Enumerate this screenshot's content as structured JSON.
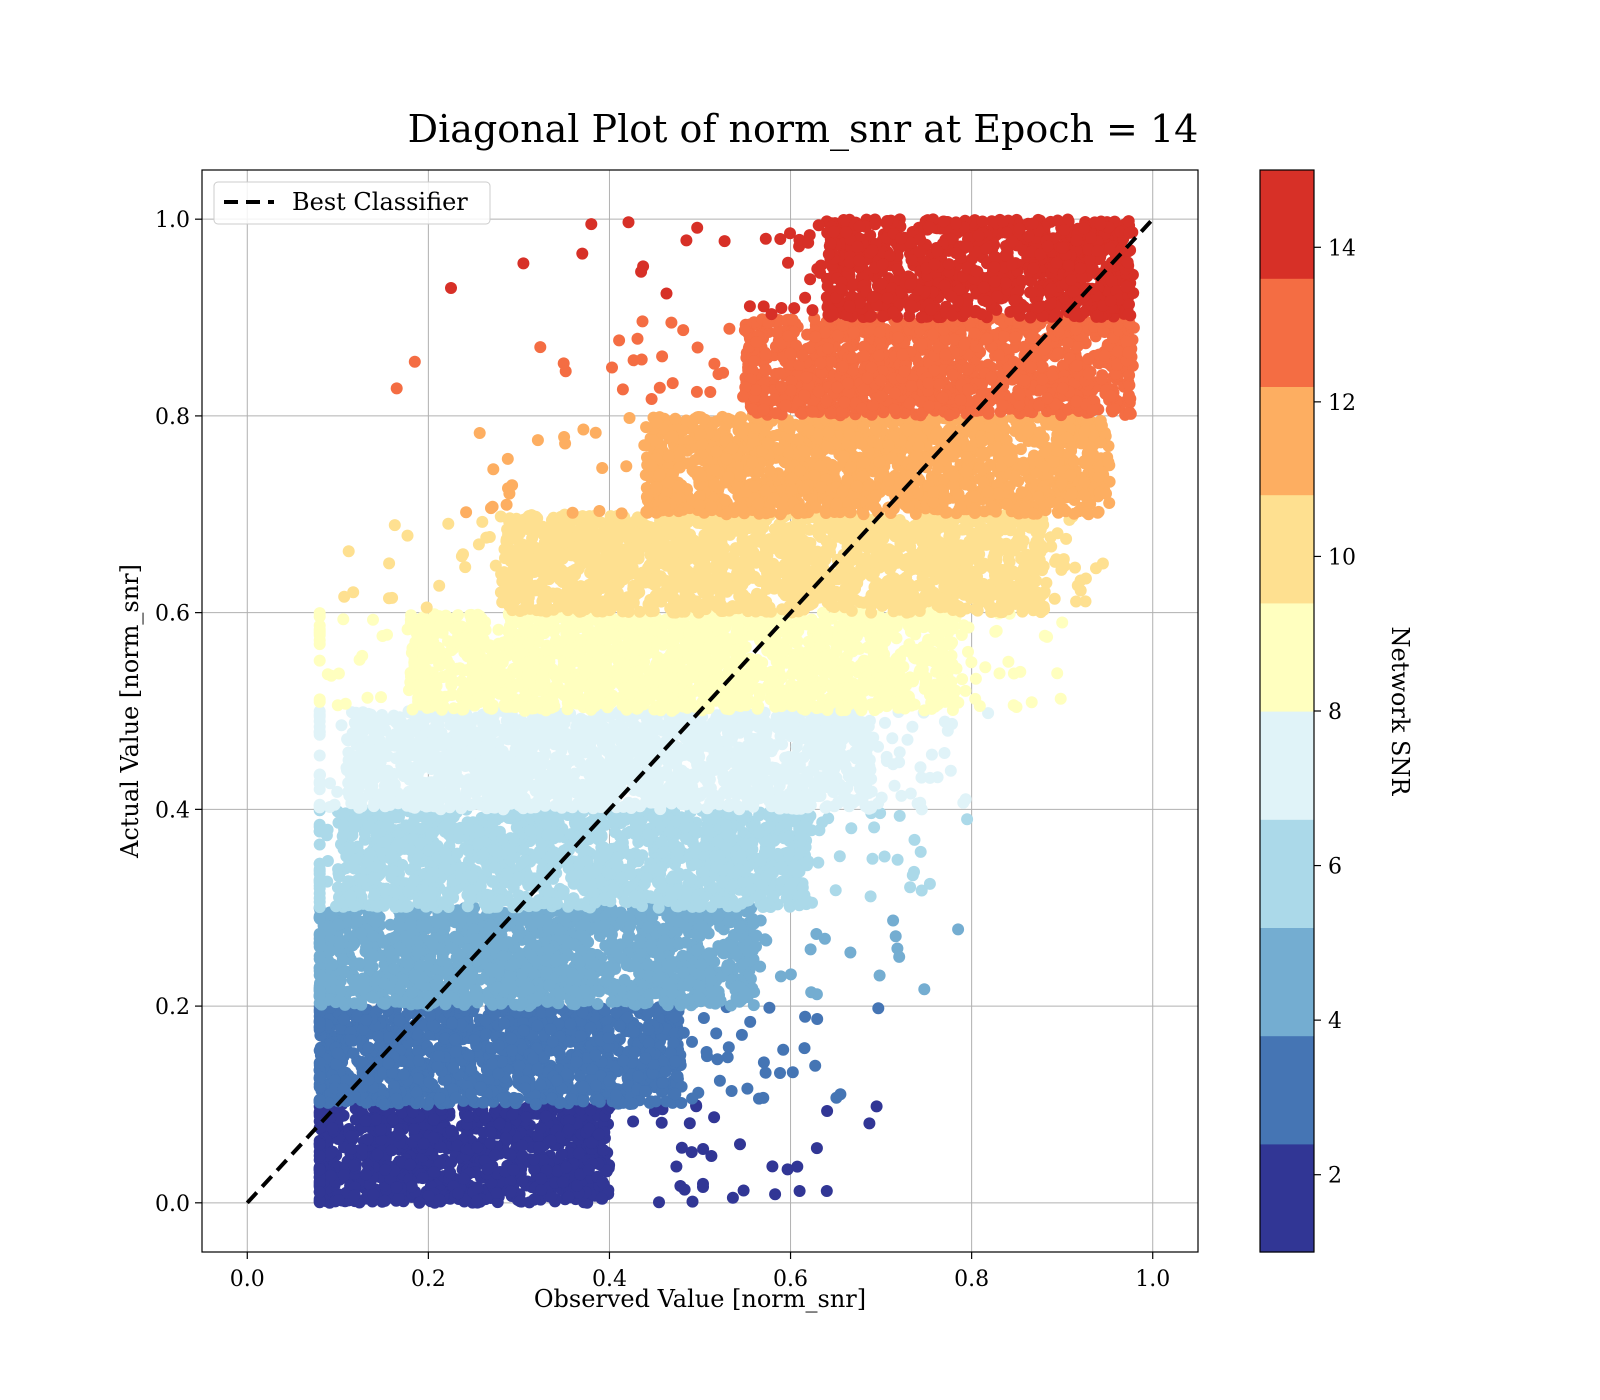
{
  "chart_data": {
    "type": "scatter",
    "title": "Diagonal Plot of norm_snr at Epoch = 14",
    "xlabel": "Observed Value [norm_snr]",
    "ylabel": "Actual Value [norm_snr]",
    "xlim": [
      -0.05,
      1.05
    ],
    "ylim": [
      -0.05,
      1.05
    ],
    "x_ticks": [
      "0.0",
      "0.2",
      "0.4",
      "0.6",
      "0.8",
      "1.0"
    ],
    "y_ticks": [
      "0.0",
      "0.2",
      "0.4",
      "0.6",
      "0.8",
      "1.0"
    ],
    "grid": true,
    "legend": {
      "placement": "upper-left",
      "entries": [
        "Best Classifier"
      ]
    },
    "reference_line": {
      "name": "Best Classifier",
      "style": "dashed",
      "color": "#000000",
      "from": [
        0,
        0
      ],
      "to": [
        1,
        1
      ]
    },
    "colorbar": {
      "label": "Network SNR",
      "range": [
        1,
        15
      ],
      "ticks": [
        "2",
        "4",
        "6",
        "8",
        "10",
        "12",
        "14"
      ],
      "colors": [
        "#313695",
        "#4575b4",
        "#74add1",
        "#abd9e9",
        "#e0f3f8",
        "#ffffbf",
        "#fee090",
        "#fdae61",
        "#f46d43",
        "#d73027",
        "#a50026"
      ]
    },
    "bands": [
      {
        "y_range": [
          0.0,
          0.1
        ],
        "color": "#313695",
        "core_x": [
          0.08,
          0.4
        ],
        "spread_x_max": 0.7
      },
      {
        "y_range": [
          0.1,
          0.2
        ],
        "color": "#4575b4",
        "core_x": [
          0.08,
          0.48
        ],
        "spread_x_max": 0.7
      },
      {
        "y_range": [
          0.2,
          0.3
        ],
        "color": "#74add1",
        "core_x": [
          0.08,
          0.56
        ],
        "spread_x_max": 0.78
      },
      {
        "y_range": [
          0.3,
          0.4
        ],
        "color": "#abd9e9",
        "core_x": [
          0.1,
          0.62
        ],
        "spread_x_max": 0.8
      },
      {
        "y_range": [
          0.4,
          0.5
        ],
        "color": "#e0f3f8",
        "core_x": [
          0.11,
          0.69
        ],
        "spread_x_max": 0.82
      },
      {
        "y_range": [
          0.5,
          0.6
        ],
        "color": "#ffffbf",
        "core_x": [
          0.18,
          0.78
        ],
        "spread_x_max": 0.9
      },
      {
        "y_range": [
          0.6,
          0.7
        ],
        "color": "#fee090",
        "core_x": [
          0.28,
          0.88
        ],
        "spread_x_max": 0.95
      },
      {
        "y_range": [
          0.7,
          0.8
        ],
        "color": "#fdae61",
        "core_x": [
          0.44,
          0.94
        ],
        "spread_x_max": 0.96
      },
      {
        "y_range": [
          0.8,
          0.9
        ],
        "color": "#f46d43",
        "core_x": [
          0.55,
          0.97
        ],
        "spread_x_max": 0.98
      },
      {
        "y_range": [
          0.9,
          1.0
        ],
        "color": "#d73027",
        "core_x": [
          0.64,
          0.97
        ],
        "spread_x_max": 0.98
      }
    ],
    "outliers": [
      {
        "x": 0.225,
        "y": 0.93
      },
      {
        "x": 0.305,
        "y": 0.955
      },
      {
        "x": 0.37,
        "y": 0.965
      },
      {
        "x": 0.38,
        "y": 0.995
      },
      {
        "x": 0.695,
        "y": 0.098
      },
      {
        "x": 0.64,
        "y": 0.012
      },
      {
        "x": 0.61,
        "y": 0.012
      },
      {
        "x": 0.58,
        "y": 0.037
      },
      {
        "x": 0.72,
        "y": 0.25
      },
      {
        "x": 0.785,
        "y": 0.278
      },
      {
        "x": 0.735,
        "y": 0.333
      },
      {
        "x": 0.945,
        "y": 0.65
      },
      {
        "x": 0.9,
        "y": 0.59
      },
      {
        "x": 0.795,
        "y": 0.39
      },
      {
        "x": 0.745,
        "y": 0.4
      },
      {
        "x": 0.16,
        "y": 0.615
      },
      {
        "x": 0.165,
        "y": 0.828
      },
      {
        "x": 0.185,
        "y": 0.855
      }
    ]
  }
}
